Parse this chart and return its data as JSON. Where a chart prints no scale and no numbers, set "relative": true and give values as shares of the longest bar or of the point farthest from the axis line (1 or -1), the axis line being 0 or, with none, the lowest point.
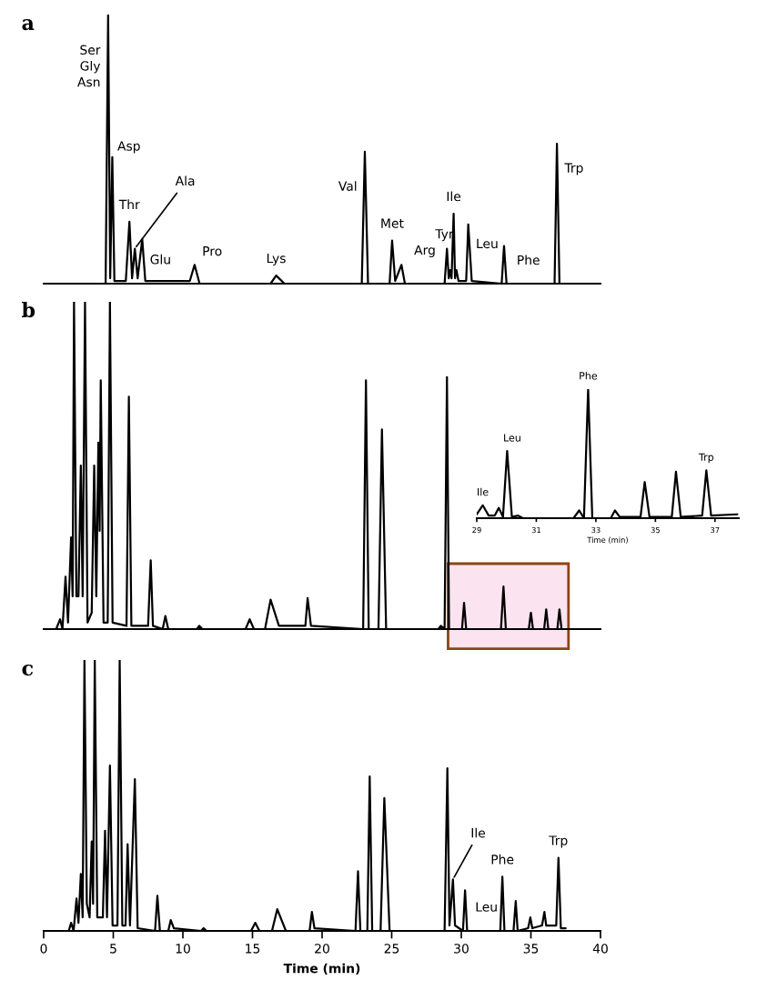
{
  "chart_data": [
    {
      "type": "line",
      "title": "a",
      "relative": true,
      "xlim": [
        0,
        40
      ],
      "tick_labels": false,
      "grid": false,
      "legend": false,
      "x": [
        0,
        4.45,
        4.63,
        4.78,
        4.93,
        5.08,
        5.9,
        6.16,
        6.35,
        6.55,
        6.75,
        7.08,
        7.3,
        10.5,
        10.84,
        11.2,
        16.3,
        16.7,
        17.3,
        22.85,
        23.07,
        23.3,
        24.85,
        25.03,
        25.25,
        25.7,
        25.95,
        28.8,
        28.97,
        29.1,
        29.2,
        29.3,
        29.45,
        29.55,
        29.65,
        29.8,
        30.35,
        30.5,
        30.75,
        32.9,
        33.07,
        33.25,
        36.7,
        36.87,
        37.05,
        39.7
      ],
      "series": [
        {
          "color": "#000000",
          "values": [
            0,
            0,
            1.0,
            0.02,
            0.47,
            0.01,
            0.01,
            0.23,
            0.02,
            0.13,
            0.02,
            0.165,
            0.01,
            0.01,
            0.07,
            0,
            0,
            0.03,
            0,
            0,
            0.49,
            0,
            0,
            0.16,
            0.01,
            0.07,
            0,
            0,
            0.13,
            0.02,
            0.05,
            0.02,
            0.26,
            0.02,
            0.05,
            0.01,
            0.01,
            0.22,
            0.01,
            0,
            0.14,
            0,
            0,
            0.52,
            0,
            0
          ]
        }
      ],
      "annotations": [
        {
          "text": "Ser\nGly\nAsn",
          "x": 4.63,
          "y": 1.0
        },
        {
          "text": "Asp",
          "x": 4.93,
          "y": 0.47
        },
        {
          "text": "Thr",
          "x": 6.16,
          "y": 0.23
        },
        {
          "text": "Ala",
          "x": 6.55,
          "y": 0.13
        },
        {
          "text": "Glu",
          "x": 7.08,
          "y": 0.165
        },
        {
          "text": "Pro",
          "x": 10.84,
          "y": 0.07
        },
        {
          "text": "Lys",
          "x": 16.7,
          "y": 0.03
        },
        {
          "text": "Val",
          "x": 23.07,
          "y": 0.49
        },
        {
          "text": "Met",
          "x": 25.03,
          "y": 0.16
        },
        {
          "text": "Arg",
          "x": 25.7,
          "y": 0.07
        },
        {
          "text": "Tyr",
          "x": 28.97,
          "y": 0.13
        },
        {
          "text": "Ile",
          "x": 29.45,
          "y": 0.26
        },
        {
          "text": "Leu",
          "x": 30.5,
          "y": 0.22
        },
        {
          "text": "Phe",
          "x": 33.07,
          "y": 0.14
        },
        {
          "text": "Trp",
          "x": 36.87,
          "y": 0.52
        }
      ]
    },
    {
      "type": "line",
      "title": "b",
      "relative": true,
      "xlim": [
        0,
        40
      ],
      "tick_labels": false,
      "grid": false,
      "legend": false,
      "x": [
        0,
        0.9,
        1.18,
        1.35,
        1.57,
        1.75,
        1.97,
        2.08,
        2.18,
        2.35,
        2.5,
        2.67,
        2.8,
        2.97,
        3.15,
        3.45,
        3.63,
        3.78,
        3.93,
        4.02,
        4.1,
        4.3,
        4.6,
        4.76,
        4.95,
        5.95,
        6.12,
        6.3,
        7.5,
        7.69,
        7.85,
        8.55,
        8.74,
        8.95,
        11.0,
        11.18,
        11.4,
        14.5,
        14.8,
        15.1,
        15.9,
        16.3,
        16.9,
        18.8,
        18.96,
        19.2,
        22.95,
        23.15,
        23.35,
        24.05,
        24.3,
        24.6,
        28.35,
        28.53,
        28.8,
        28.97,
        29.12,
        30.05,
        30.2,
        30.35,
        32.85,
        33.03,
        33.2,
        34.85,
        35.0,
        35.15,
        35.95,
        36.1,
        36.25,
        36.9,
        37.05,
        37.2,
        38.9
      ],
      "series": [
        {
          "color": "#000000",
          "values": [
            0,
            0,
            0.03,
            0,
            0.16,
            0.02,
            0.28,
            0.1,
            1.0,
            0.1,
            0.1,
            0.5,
            0.1,
            1.0,
            0.02,
            0.05,
            0.5,
            0.1,
            0.57,
            0.3,
            0.76,
            0.02,
            0.02,
            1.0,
            0.02,
            0.01,
            0.71,
            0.01,
            0.01,
            0.21,
            0.01,
            0,
            0.04,
            0,
            0,
            0.01,
            0,
            0,
            0.03,
            0,
            0,
            0.09,
            0.01,
            0.01,
            0.095,
            0.01,
            0,
            0.76,
            0,
            0,
            0.61,
            0,
            0,
            0.01,
            0,
            0.77,
            0,
            0,
            0.08,
            0,
            0,
            0.13,
            0,
            0,
            0.05,
            0,
            0,
            0.06,
            0,
            0,
            0.06,
            0,
            0
          ]
        }
      ],
      "bands": [
        {
          "axis": "x",
          "from": 29.05,
          "to": 37.7,
          "color": "#8b4513"
        }
      ]
    },
    {
      "type": "line",
      "relative": true,
      "xlim": [
        29,
        37.8
      ],
      "xticks": [
        29,
        31,
        33,
        35,
        37
      ],
      "xlabel": "Time (min)",
      "tick_labels": "x",
      "grid": false,
      "legend": false,
      "x": [
        29.0,
        29.2,
        29.4,
        29.6,
        29.74,
        29.88,
        30.02,
        30.18,
        30.39,
        30.55,
        32.25,
        32.44,
        32.6,
        32.74,
        32.88,
        33.5,
        33.64,
        33.8,
        34.5,
        34.64,
        34.8,
        35.55,
        35.69,
        35.85,
        36.57,
        36.71,
        36.87,
        37.75
      ],
      "series": [
        {
          "color": "#000000",
          "values": [
            0.03,
            0.1,
            0.02,
            0.02,
            0.08,
            0.01,
            0.52,
            0.01,
            0.02,
            0,
            0,
            0.06,
            0,
            1.0,
            0,
            0,
            0.06,
            0.01,
            0.01,
            0.28,
            0.01,
            0.01,
            0.36,
            0.01,
            0.02,
            0.37,
            0.02,
            0.03
          ]
        }
      ],
      "annotations": [
        {
          "text": "Ile",
          "x": 29.2,
          "y": 0.1
        },
        {
          "text": "Leu",
          "x": 30.02,
          "y": 0.52
        },
        {
          "text": "Phe",
          "x": 32.74,
          "y": 1.0
        },
        {
          "text": "Trp",
          "x": 36.71,
          "y": 0.37
        }
      ]
    },
    {
      "type": "line",
      "title": "c",
      "relative": true,
      "xlim": [
        0,
        40
      ],
      "xticks": [
        0,
        5,
        10,
        15,
        20,
        25,
        30,
        35,
        40
      ],
      "xlabel": "Time (min)",
      "tick_labels": "x",
      "grid": false,
      "legend": false,
      "x": [
        0,
        1.8,
        1.97,
        2.15,
        2.36,
        2.5,
        2.67,
        2.8,
        2.93,
        3.1,
        3.3,
        3.45,
        3.55,
        3.67,
        3.85,
        4.25,
        4.41,
        4.55,
        4.76,
        4.95,
        5.3,
        5.46,
        5.65,
        5.88,
        6.03,
        6.2,
        6.55,
        6.75,
        8.0,
        8.17,
        8.35,
        8.95,
        9.13,
        9.35,
        11.3,
        11.49,
        11.7,
        14.9,
        15.2,
        15.5,
        16.4,
        16.78,
        17.4,
        19.1,
        19.27,
        19.45,
        22.4,
        22.58,
        22.75,
        23.25,
        23.42,
        23.6,
        24.2,
        24.47,
        24.85,
        28.8,
        29.0,
        29.15,
        29.4,
        29.55,
        30.12,
        30.27,
        30.42,
        32.8,
        32.95,
        33.1,
        33.75,
        33.91,
        34.05,
        34.8,
        34.96,
        35.1,
        35.8,
        35.97,
        36.1,
        36.82,
        36.98,
        37.15,
        37.5
      ],
      "series": [
        {
          "color": "#000000",
          "values": [
            0,
            0,
            0.03,
            0,
            0.12,
            0.03,
            0.21,
            0.05,
            1.0,
            0.1,
            0.05,
            0.33,
            0.1,
            1.0,
            0.05,
            0.05,
            0.37,
            0.05,
            0.61,
            0.02,
            0.02,
            1.0,
            0.02,
            0.02,
            0.32,
            0.02,
            0.56,
            0.01,
            0,
            0.13,
            0,
            0,
            0.04,
            0.01,
            0,
            0.01,
            0,
            0,
            0.03,
            0,
            0,
            0.08,
            0,
            0,
            0.07,
            0.01,
            0,
            0.22,
            0,
            0,
            0.57,
            0,
            0,
            0.49,
            0,
            0,
            0.6,
            0.02,
            0.19,
            0.02,
            0,
            0.15,
            0,
            0,
            0.2,
            0,
            0,
            0.11,
            0,
            0.01,
            0.05,
            0.01,
            0.02,
            0.07,
            0.02,
            0.02,
            0.27,
            0.01,
            0.01
          ]
        }
      ],
      "annotations": [
        {
          "text": "Ile",
          "x": 29.4,
          "y": 0.19
        },
        {
          "text": "Leu",
          "x": 30.27,
          "y": 0.15
        },
        {
          "text": "Phe",
          "x": 32.95,
          "y": 0.2
        },
        {
          "text": "Trp",
          "x": 36.98,
          "y": 0.27
        }
      ]
    }
  ]
}
